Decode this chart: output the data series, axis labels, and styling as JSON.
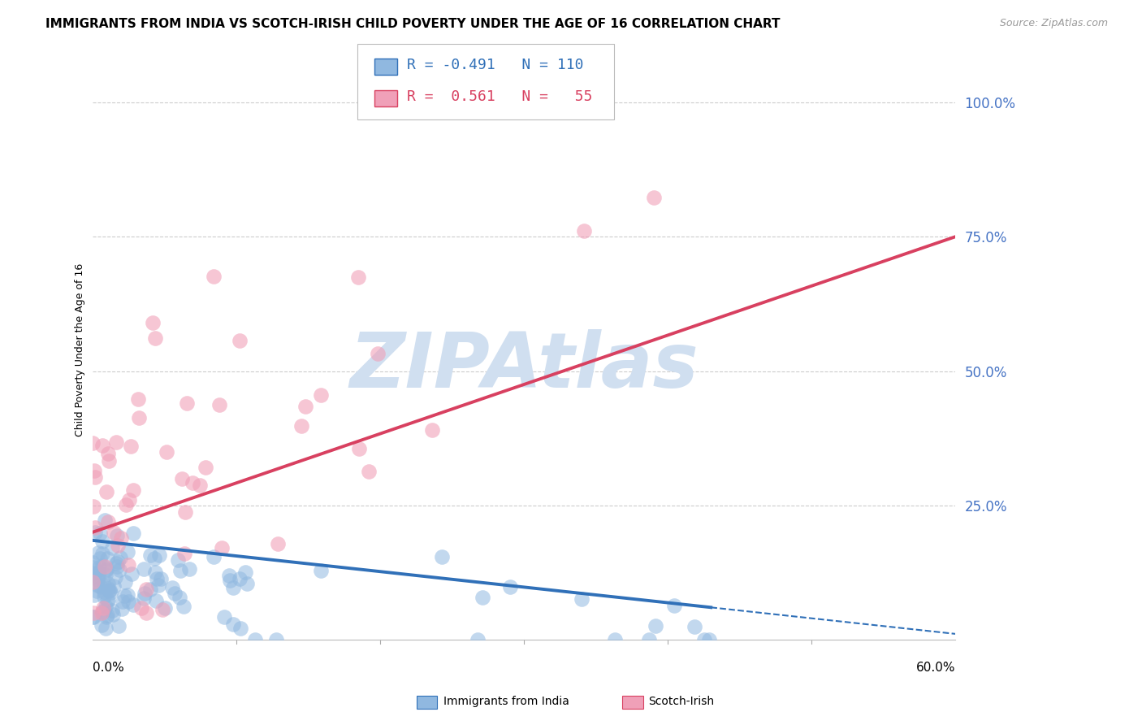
{
  "title": "IMMIGRANTS FROM INDIA VS SCOTCH-IRISH CHILD POVERTY UNDER THE AGE OF 16 CORRELATION CHART",
  "source": "Source: ZipAtlas.com",
  "ylabel": "Child Poverty Under the Age of 16",
  "right_ytick_labels": [
    "100.0%",
    "75.0%",
    "50.0%",
    "25.0%"
  ],
  "right_ytick_values": [
    1.0,
    0.75,
    0.5,
    0.25
  ],
  "xlim": [
    0.0,
    0.6
  ],
  "ylim": [
    0.0,
    1.08
  ],
  "india_R": -0.491,
  "india_N": 110,
  "scotch_R": 0.561,
  "scotch_N": 55,
  "india_color": "#90b8e0",
  "scotch_color": "#f0a0b8",
  "india_line_color": "#3070b8",
  "scotch_line_color": "#d84060",
  "title_fontsize": 11,
  "source_fontsize": 9,
  "axis_label_fontsize": 9,
  "tick_fontsize": 11,
  "legend_fontsize": 13,
  "watermark_text": "ZIPAtlas",
  "watermark_color": "#d0dff0",
  "background_color": "#ffffff",
  "grid_color": "#cccccc",
  "right_label_color": "#4472c4"
}
